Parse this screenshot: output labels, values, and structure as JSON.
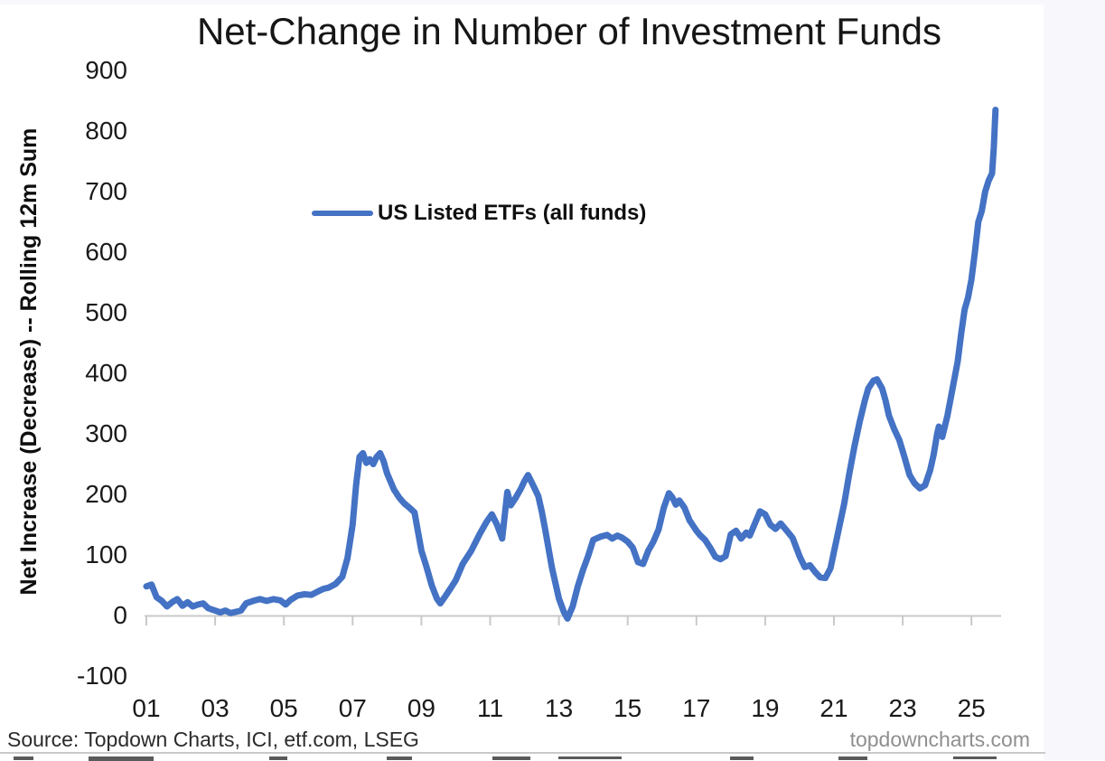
{
  "chart": {
    "title": "Net-Change in Number of Investment Funds",
    "y_axis_title": "Net Increase (Decrease) -- Rolling 12m Sum",
    "legend_label": "US Listed ETFs (all funds)"
  },
  "footer": {
    "source": "Source: Topdown Charts, ICI, etf.com, LSEG",
    "watermark": "topdowncharts.com"
  },
  "colors": {
    "series_blue": "#4472C4",
    "axis_gray": "#c9c9c9",
    "viewport_background": "#f8f8fc"
  },
  "chart_data": {
    "type": "line",
    "title": "Net-Change in Number of Investment Funds",
    "xlabel": "",
    "ylabel": "Net Increase (Decrease) -- Rolling 12m Sum",
    "ylim": [
      -100,
      900
    ],
    "xlim": [
      2001,
      2025.9
    ],
    "grid": false,
    "legend_position": "inside-upper-left",
    "x_tick_labels": [
      "01",
      "03",
      "05",
      "07",
      "09",
      "11",
      "13",
      "15",
      "17",
      "19",
      "21",
      "23",
      "25"
    ],
    "y_ticks": [
      900,
      800,
      700,
      600,
      500,
      400,
      300,
      200,
      100,
      0,
      -100
    ],
    "series": [
      {
        "name": "US Listed ETFs (all funds)",
        "color": "#4472C4",
        "points": [
          [
            2001.0,
            48
          ],
          [
            2001.15,
            51
          ],
          [
            2001.3,
            30
          ],
          [
            2001.45,
            24
          ],
          [
            2001.6,
            15
          ],
          [
            2001.75,
            22
          ],
          [
            2001.9,
            27
          ],
          [
            2002.05,
            16
          ],
          [
            2002.2,
            22
          ],
          [
            2002.35,
            15
          ],
          [
            2002.5,
            18
          ],
          [
            2002.65,
            20
          ],
          [
            2002.8,
            12
          ],
          [
            2003.0,
            8
          ],
          [
            2003.15,
            5
          ],
          [
            2003.3,
            8
          ],
          [
            2003.45,
            4
          ],
          [
            2003.6,
            6
          ],
          [
            2003.75,
            8
          ],
          [
            2003.9,
            20
          ],
          [
            2004.1,
            24
          ],
          [
            2004.3,
            27
          ],
          [
            2004.5,
            24
          ],
          [
            2004.7,
            27
          ],
          [
            2004.9,
            25
          ],
          [
            2005.05,
            18
          ],
          [
            2005.2,
            26
          ],
          [
            2005.4,
            33
          ],
          [
            2005.6,
            35
          ],
          [
            2005.8,
            34
          ],
          [
            2006.0,
            40
          ],
          [
            2006.15,
            44
          ],
          [
            2006.3,
            46
          ],
          [
            2006.5,
            52
          ],
          [
            2006.7,
            64
          ],
          [
            2006.85,
            95
          ],
          [
            2007.0,
            150
          ],
          [
            2007.1,
            215
          ],
          [
            2007.2,
            262
          ],
          [
            2007.3,
            268
          ],
          [
            2007.4,
            252
          ],
          [
            2007.5,
            258
          ],
          [
            2007.6,
            250
          ],
          [
            2007.7,
            262
          ],
          [
            2007.8,
            268
          ],
          [
            2007.9,
            255
          ],
          [
            2008.0,
            235
          ],
          [
            2008.2,
            208
          ],
          [
            2008.35,
            195
          ],
          [
            2008.5,
            185
          ],
          [
            2008.65,
            178
          ],
          [
            2008.8,
            170
          ],
          [
            2009.0,
            107
          ],
          [
            2009.15,
            80
          ],
          [
            2009.3,
            50
          ],
          [
            2009.45,
            28
          ],
          [
            2009.55,
            20
          ],
          [
            2009.7,
            32
          ],
          [
            2009.85,
            45
          ],
          [
            2010.0,
            58
          ],
          [
            2010.2,
            85
          ],
          [
            2010.45,
            107
          ],
          [
            2010.7,
            135
          ],
          [
            2010.9,
            155
          ],
          [
            2011.05,
            167
          ],
          [
            2011.2,
            150
          ],
          [
            2011.35,
            127
          ],
          [
            2011.5,
            204
          ],
          [
            2011.6,
            182
          ],
          [
            2011.75,
            195
          ],
          [
            2011.9,
            210
          ],
          [
            2012.0,
            222
          ],
          [
            2012.1,
            232
          ],
          [
            2012.25,
            215
          ],
          [
            2012.4,
            197
          ],
          [
            2012.5,
            172
          ],
          [
            2012.6,
            142
          ],
          [
            2012.8,
            78
          ],
          [
            2013.0,
            28
          ],
          [
            2013.15,
            5
          ],
          [
            2013.25,
            -5
          ],
          [
            2013.4,
            15
          ],
          [
            2013.55,
            48
          ],
          [
            2013.7,
            75
          ],
          [
            2013.85,
            98
          ],
          [
            2014.0,
            125
          ],
          [
            2014.2,
            130
          ],
          [
            2014.4,
            133
          ],
          [
            2014.55,
            127
          ],
          [
            2014.7,
            132
          ],
          [
            2014.85,
            128
          ],
          [
            2015.0,
            122
          ],
          [
            2015.15,
            112
          ],
          [
            2015.3,
            88
          ],
          [
            2015.45,
            85
          ],
          [
            2015.6,
            107
          ],
          [
            2015.75,
            122
          ],
          [
            2015.9,
            142
          ],
          [
            2016.05,
            178
          ],
          [
            2016.2,
            202
          ],
          [
            2016.3,
            195
          ],
          [
            2016.4,
            183
          ],
          [
            2016.5,
            190
          ],
          [
            2016.65,
            178
          ],
          [
            2016.8,
            157
          ],
          [
            2017.0,
            140
          ],
          [
            2017.1,
            133
          ],
          [
            2017.25,
            125
          ],
          [
            2017.4,
            112
          ],
          [
            2017.55,
            97
          ],
          [
            2017.7,
            93
          ],
          [
            2017.85,
            98
          ],
          [
            2018.0,
            134
          ],
          [
            2018.15,
            140
          ],
          [
            2018.3,
            127
          ],
          [
            2018.45,
            137
          ],
          [
            2018.55,
            132
          ],
          [
            2018.7,
            152
          ],
          [
            2018.85,
            172
          ],
          [
            2019.0,
            167
          ],
          [
            2019.15,
            150
          ],
          [
            2019.3,
            143
          ],
          [
            2019.45,
            152
          ],
          [
            2019.6,
            142
          ],
          [
            2019.8,
            128
          ],
          [
            2020.0,
            98
          ],
          [
            2020.15,
            80
          ],
          [
            2020.3,
            83
          ],
          [
            2020.45,
            72
          ],
          [
            2020.6,
            63
          ],
          [
            2020.75,
            62
          ],
          [
            2020.9,
            78
          ],
          [
            2021.0,
            105
          ],
          [
            2021.15,
            145
          ],
          [
            2021.3,
            185
          ],
          [
            2021.45,
            235
          ],
          [
            2021.6,
            280
          ],
          [
            2021.75,
            320
          ],
          [
            2021.9,
            355
          ],
          [
            2022.0,
            375
          ],
          [
            2022.15,
            388
          ],
          [
            2022.25,
            390
          ],
          [
            2022.4,
            375
          ],
          [
            2022.5,
            355
          ],
          [
            2022.6,
            330
          ],
          [
            2022.75,
            308
          ],
          [
            2022.9,
            290
          ],
          [
            2023.05,
            262
          ],
          [
            2023.2,
            232
          ],
          [
            2023.35,
            218
          ],
          [
            2023.5,
            210
          ],
          [
            2023.65,
            215
          ],
          [
            2023.8,
            240
          ],
          [
            2023.9,
            265
          ],
          [
            2024.0,
            300
          ],
          [
            2024.05,
            312
          ],
          [
            2024.15,
            295
          ],
          [
            2024.3,
            330
          ],
          [
            2024.45,
            375
          ],
          [
            2024.6,
            420
          ],
          [
            2024.7,
            465
          ],
          [
            2024.8,
            505
          ],
          [
            2024.9,
            525
          ],
          [
            2025.0,
            555
          ],
          [
            2025.1,
            600
          ],
          [
            2025.2,
            650
          ],
          [
            2025.3,
            668
          ],
          [
            2025.4,
            700
          ],
          [
            2025.5,
            718
          ],
          [
            2025.6,
            730
          ],
          [
            2025.65,
            772
          ],
          [
            2025.7,
            835
          ]
        ]
      }
    ]
  }
}
